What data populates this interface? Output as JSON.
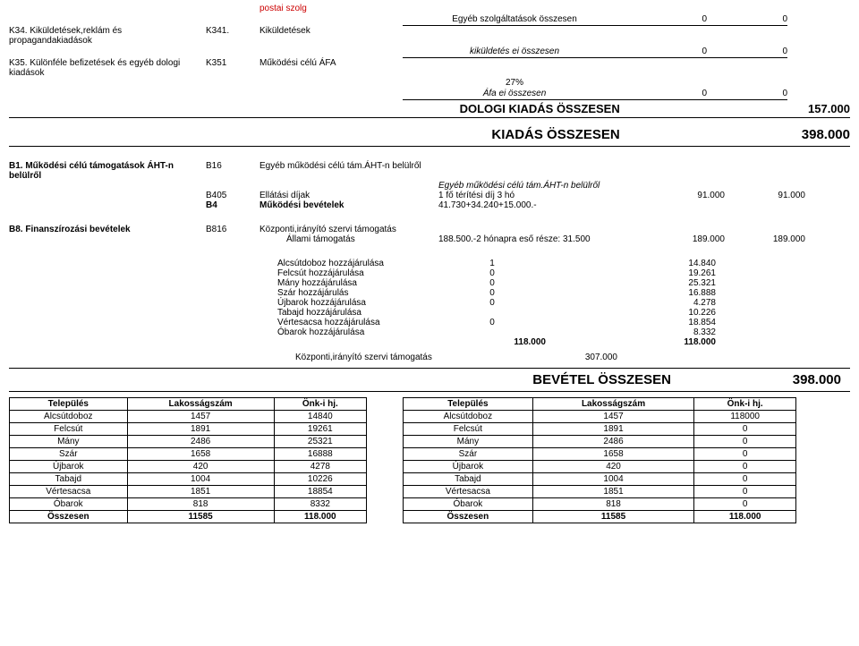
{
  "top": {
    "postai": "postai szolg",
    "row1": {
      "label": "Egyéb szolgáltatások összesen",
      "v1": "0",
      "v2": "0"
    },
    "k34": "K34. Kiküldetések,reklám és propagandakiadások",
    "k341_code": "K341.",
    "k341_desc": "Kiküldetések",
    "row2": {
      "label": "kiküldetés ei összesen",
      "v1": "0",
      "v2": "0"
    },
    "k35": "K35. Különféle befizetések és egyéb dologi kiadások",
    "k351_code": "K351",
    "k351_desc": "Működési célú ÁFA",
    "pct": "27%",
    "afa": {
      "label": "Áfa ei összesen",
      "v1": "0",
      "v2": "0"
    },
    "dologi": {
      "label": "DOLOGI KIADÁS ÖSSZESEN",
      "total": "157.000"
    },
    "kiadas": {
      "label": "KIADÁS ÖSSZESEN",
      "total": "398.000"
    }
  },
  "b1": {
    "title": "B1. Működési célú támogatások ÁHT-n belülről",
    "b16_code": "B16",
    "b16_desc": "Egyéb működési célú tám.ÁHT-n belülről",
    "sub": "Egyéb működési célú tám.ÁHT-n belülről",
    "b405_code": "B405",
    "b405_desc": "Ellátási díjak",
    "b405_note": "1 fő térítési díj 3 hó",
    "b405_v1": "91.000",
    "b405_v2": "91.000",
    "b4_code": "B4",
    "b4_desc": "Működési bevételek",
    "b4_note": "41.730+34.240+15.000.-"
  },
  "b8": {
    "title": "B8. Finanszírozási bevételek",
    "code": "B816",
    "desc": "Központi,irányító szervi támogatás",
    "sub_lbl": "Állami támogatás",
    "sub_note": "188.500.-2 hónapra eső része: 31.500",
    "sub_v1": "189.000",
    "sub_v2": "189.000"
  },
  "contrib": [
    {
      "lbl": "Alcsútdoboz hozzájárulása",
      "v1": "1",
      "v2": "14.840"
    },
    {
      "lbl": "Felcsút hozzájárulása",
      "v1": "0",
      "v2": "19.261"
    },
    {
      "lbl": "Mány hozzájárulása",
      "v1": "0",
      "v2": "25.321"
    },
    {
      "lbl": "Szár hozzájárulás",
      "v1": "0",
      "v2": "16.888"
    },
    {
      "lbl": "Újbarok hozzájárulása",
      "v1": "0",
      "v2": "4.278"
    },
    {
      "lbl": "Tabajd hozzájárulása",
      "v1": "",
      "v2": "10.226"
    },
    {
      "lbl": "Vértesacsa hozzájárulása",
      "v1": "0",
      "v2": "18.854"
    },
    {
      "lbl": "Óbarok hozzájárulása",
      "v1": "",
      "v2": "8.332"
    }
  ],
  "contrib_total": {
    "v1": "118.000",
    "v2": "118.000"
  },
  "kozponti": {
    "lbl": "Központi,irányító szervi támogatás",
    "val": "307.000"
  },
  "bevetel": {
    "lbl": "BEVÉTEL ÖSSZESEN",
    "total": "398.000"
  },
  "tbl1": {
    "h1": "Település",
    "h2": "Lakosságszám",
    "h3": "Önk-i hj.",
    "rows": [
      [
        "Alcsútdoboz",
        "1457",
        "14840"
      ],
      [
        "Felcsút",
        "1891",
        "19261"
      ],
      [
        "Mány",
        "2486",
        "25321"
      ],
      [
        "Szár",
        "1658",
        "16888"
      ],
      [
        "Újbarok",
        "420",
        "4278"
      ],
      [
        "Tabajd",
        "1004",
        "10226"
      ],
      [
        "Vértesacsa",
        "1851",
        "18854"
      ],
      [
        "Óbarok",
        "818",
        "8332"
      ],
      [
        "Összesen",
        "11585",
        "118.000"
      ]
    ]
  },
  "tbl2": {
    "h1": "Település",
    "h2": "Lakosságszám",
    "h3": "Önk-i hj.",
    "rows": [
      [
        "Alcsútdoboz",
        "1457",
        "118000"
      ],
      [
        "Felcsút",
        "1891",
        "0"
      ],
      [
        "Mány",
        "2486",
        "0"
      ],
      [
        "Szár",
        "1658",
        "0"
      ],
      [
        "Újbarok",
        "420",
        "0"
      ],
      [
        "Tabajd",
        "1004",
        "0"
      ],
      [
        "Vértesacsa",
        "1851",
        "0"
      ],
      [
        "Óbarok",
        "818",
        "0"
      ],
      [
        "Összesen",
        "11585",
        "118.000"
      ]
    ]
  }
}
